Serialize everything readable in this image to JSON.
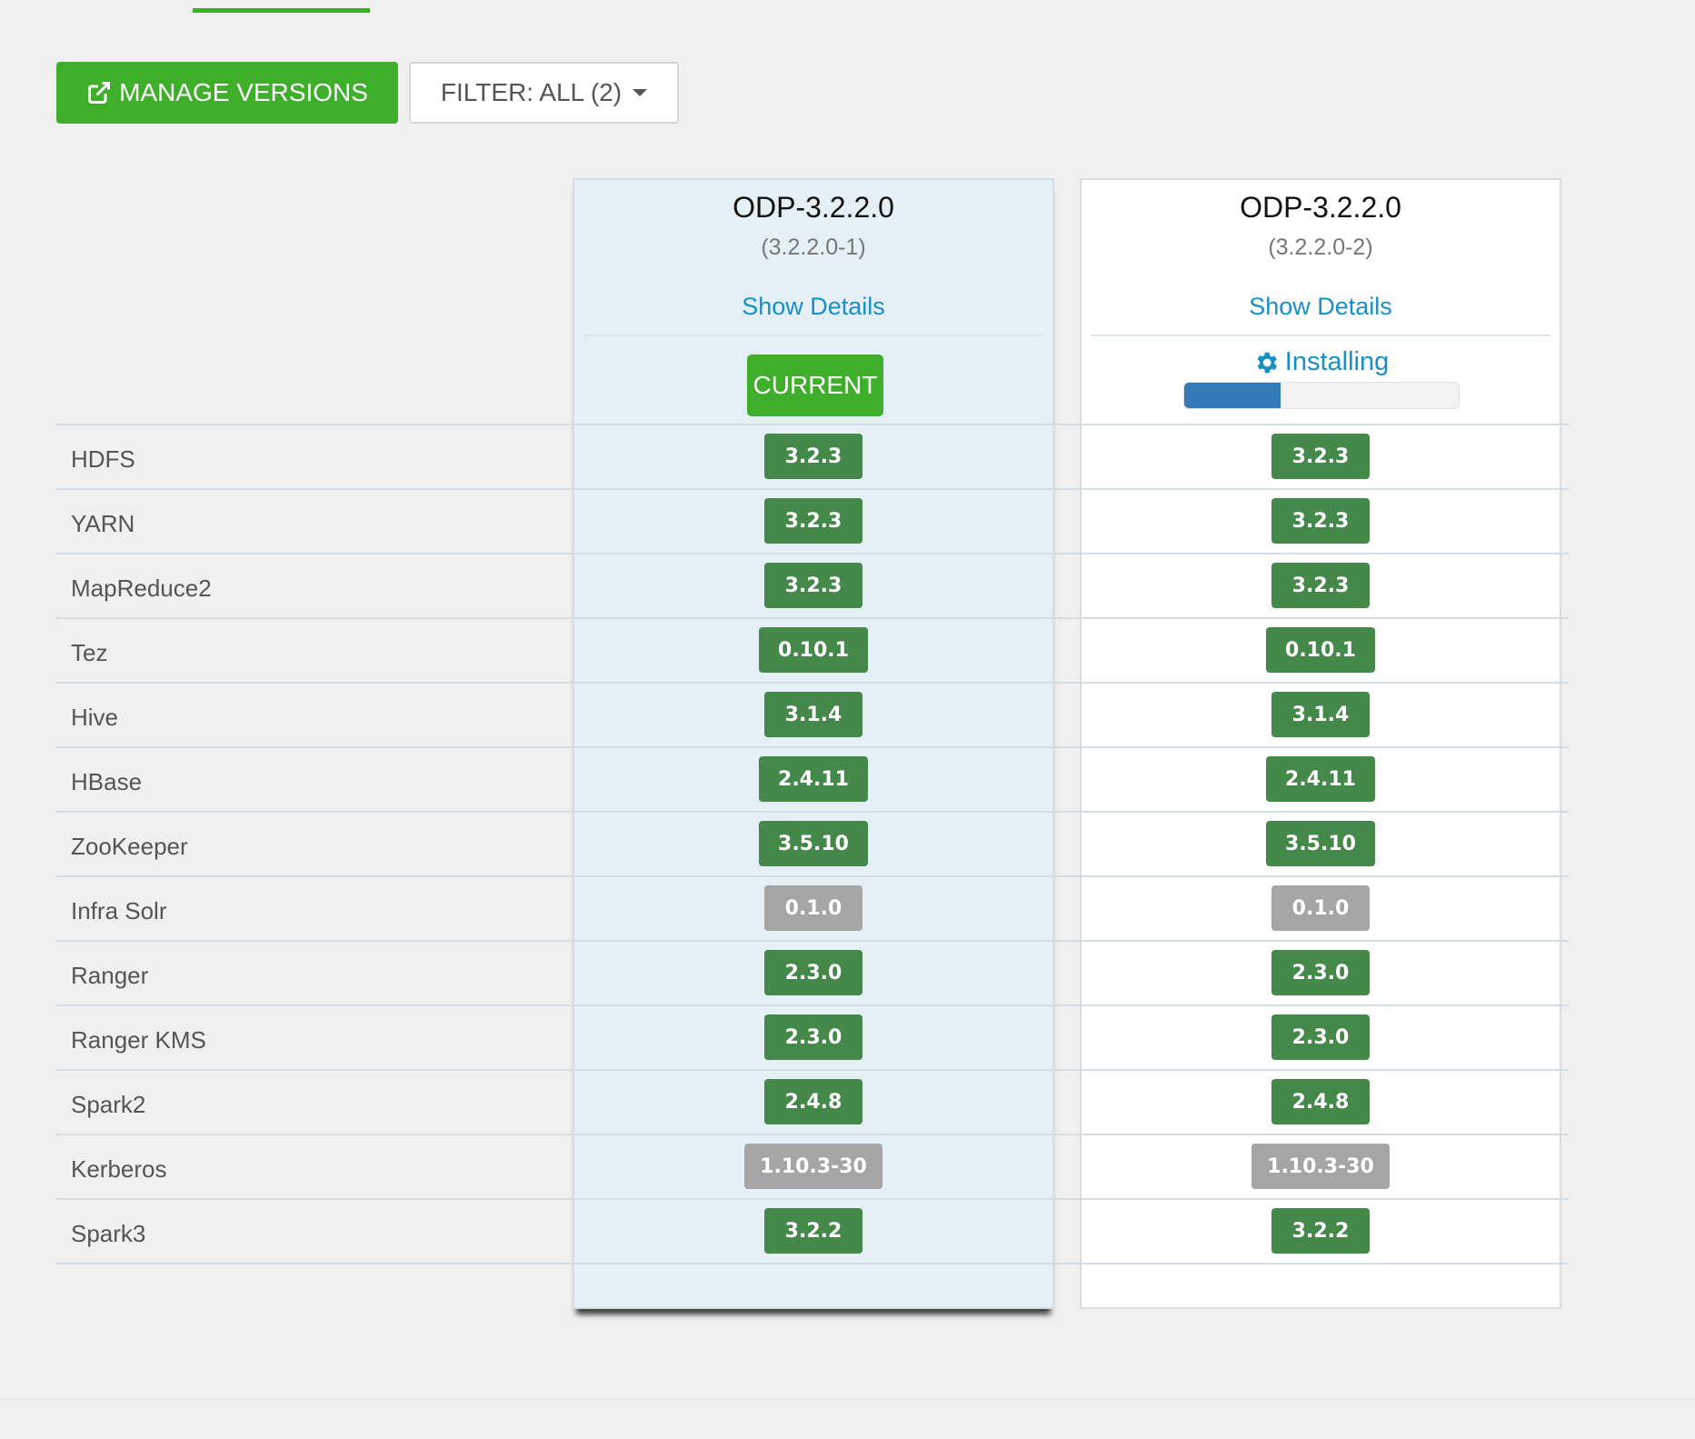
{
  "toolbar": {
    "manage_label": "MANAGE VERSIONS",
    "filter_label": "FILTER: ALL (2)"
  },
  "versions": [
    {
      "name": "ODP-3.2.2.0",
      "build": "(3.2.2.0-1)",
      "details_label": "Show Details",
      "status_label": "CURRENT"
    },
    {
      "name": "ODP-3.2.2.0",
      "build": "(3.2.2.0-2)",
      "details_label": "Show Details",
      "status_label": "Installing",
      "progress": 0.35
    }
  ],
  "services": [
    {
      "name": "HDFS",
      "v1": "3.2.3",
      "v2": "3.2.3",
      "state": "green"
    },
    {
      "name": "YARN",
      "v1": "3.2.3",
      "v2": "3.2.3",
      "state": "green"
    },
    {
      "name": "MapReduce2",
      "v1": "3.2.3",
      "v2": "3.2.3",
      "state": "green"
    },
    {
      "name": "Tez",
      "v1": "0.10.1",
      "v2": "0.10.1",
      "state": "green"
    },
    {
      "name": "Hive",
      "v1": "3.1.4",
      "v2": "3.1.4",
      "state": "green"
    },
    {
      "name": "HBase",
      "v1": "2.4.11",
      "v2": "2.4.11",
      "state": "green"
    },
    {
      "name": "ZooKeeper",
      "v1": "3.5.10",
      "v2": "3.5.10",
      "state": "green"
    },
    {
      "name": "Infra Solr",
      "v1": "0.1.0",
      "v2": "0.1.0",
      "state": "grey"
    },
    {
      "name": "Ranger",
      "v1": "2.3.0",
      "v2": "2.3.0",
      "state": "green"
    },
    {
      "name": "Ranger KMS",
      "v1": "2.3.0",
      "v2": "2.3.0",
      "state": "green"
    },
    {
      "name": "Spark2",
      "v1": "2.4.8",
      "v2": "2.4.8",
      "state": "green"
    },
    {
      "name": "Kerberos",
      "v1": "1.10.3-30",
      "v2": "1.10.3-30",
      "state": "grey"
    },
    {
      "name": "Spark3",
      "v1": "3.2.2",
      "v2": "3.2.2",
      "state": "green"
    }
  ]
}
